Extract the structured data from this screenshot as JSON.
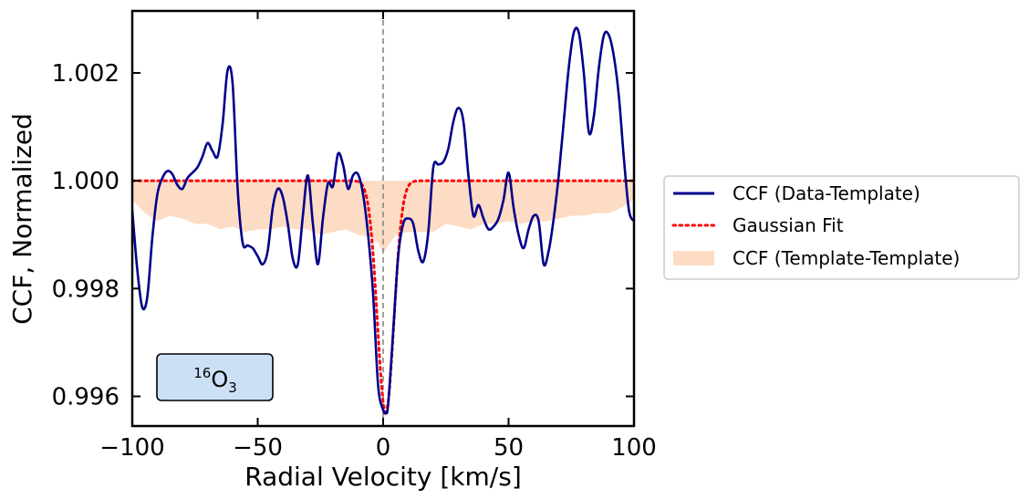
{
  "chart_data": {
    "type": "line",
    "title": "",
    "xlabel": "Radial Velocity [km/s]",
    "ylabel": "CCF, Normalized",
    "xlim": [
      -100,
      100
    ],
    "ylim": [
      0.99545,
      1.00315
    ],
    "x_ticks": [
      -100,
      -50,
      0,
      50,
      100
    ],
    "x_tick_labels": [
      "−100",
      "−50",
      "0",
      "50",
      "100"
    ],
    "y_ticks": [
      0.996,
      0.998,
      1.0,
      1.002
    ],
    "y_tick_labels": [
      "0.996",
      "0.998",
      "1.000",
      "1.002"
    ],
    "grid": false,
    "legend_position": "right-outside",
    "vertical_line_x": 0,
    "annotation": {
      "sup": "16",
      "base": "O",
      "sub": "3"
    },
    "colors": {
      "data": "#00008b",
      "fit": "#ff0000",
      "template": "#fcdcc4",
      "annotation_fill": "#cce0f5",
      "vline": "#888888"
    },
    "series": [
      {
        "name": "CCF (Data-Template)",
        "style": "solid",
        "x": [
          -100,
          -98,
          -96,
          -94,
          -92,
          -90,
          -88,
          -86,
          -84,
          -82,
          -80,
          -78,
          -76,
          -74,
          -72,
          -70,
          -68,
          -66,
          -64,
          -62,
          -60,
          -58,
          -56,
          -54,
          -52,
          -50,
          -48,
          -46,
          -44,
          -42,
          -40,
          -38,
          -36,
          -34,
          -32,
          -30,
          -28,
          -26,
          -24,
          -22,
          -20,
          -18,
          -16,
          -14,
          -12,
          -10,
          -8,
          -6,
          -4,
          -2,
          0,
          1,
          2,
          4,
          6,
          8,
          10,
          12,
          14,
          16,
          18,
          20,
          22,
          24,
          26,
          28,
          30,
          32,
          34,
          36,
          38,
          40,
          42,
          44,
          46,
          48,
          50,
          52,
          54,
          56,
          58,
          60,
          62,
          64,
          66,
          68,
          70,
          72,
          74,
          76,
          78,
          80,
          82,
          84,
          86,
          88,
          90,
          92,
          94,
          96,
          98,
          100
        ],
        "y": [
          0.99945,
          0.99835,
          0.99765,
          0.99785,
          0.99895,
          0.99975,
          1.00005,
          1.00018,
          1.00012,
          0.99992,
          0.99985,
          1.00005,
          1.00015,
          1.00025,
          1.00045,
          1.0007,
          1.00055,
          1.00045,
          1.00105,
          1.00205,
          1.0018,
          0.99985,
          0.99885,
          0.9988,
          0.99875,
          0.9986,
          0.99845,
          0.9987,
          0.9995,
          0.99985,
          0.9997,
          0.9992,
          0.99855,
          0.99845,
          0.99935,
          1.0001,
          0.9992,
          0.99845,
          0.9993,
          0.99995,
          0.9999,
          1.0005,
          1.0003,
          0.99985,
          1.0001,
          1.00012,
          0.99975,
          0.999,
          0.9979,
          0.9962,
          0.99575,
          0.9957,
          0.99585,
          0.9972,
          0.9986,
          0.9992,
          0.9993,
          0.9992,
          0.9987,
          0.9985,
          0.99905,
          1.00025,
          1.0003,
          1.00035,
          1.0006,
          1.0011,
          1.00135,
          1.0011,
          1.0001,
          0.99935,
          0.99955,
          0.9993,
          0.9991,
          0.99915,
          0.9993,
          0.99965,
          1.00015,
          0.9995,
          0.999,
          0.99875,
          0.9991,
          0.99935,
          0.99925,
          0.99845,
          0.9987,
          0.9993,
          1.0001,
          1.0011,
          1.0021,
          1.00275,
          1.00275,
          1.002,
          1.0009,
          1.0012,
          1.0021,
          1.0027,
          1.0027,
          1.0023,
          1.00155,
          1.0004,
          0.99945,
          0.99925
        ]
      },
      {
        "name": "Gaussian Fit",
        "style": "dotted",
        "model": "gaussian",
        "baseline": 1.0,
        "amplitude": -0.0043,
        "center": 1.0,
        "sigma": 3.3
      },
      {
        "name": "CCF (Template-Template)",
        "style": "filled-area",
        "baseline": 1.0,
        "x": [
          -100,
          -95,
          -90,
          -85,
          -80,
          -75,
          -70,
          -65,
          -60,
          -55,
          -50,
          -45,
          -40,
          -35,
          -30,
          -25,
          -20,
          -15,
          -10,
          -5,
          -2,
          0,
          2,
          5,
          10,
          15,
          20,
          25,
          30,
          35,
          40,
          45,
          50,
          55,
          60,
          65,
          70,
          75,
          80,
          85,
          90,
          95,
          100
        ],
        "y": [
          0.99965,
          0.9994,
          0.99925,
          0.99935,
          0.9993,
          0.9992,
          0.9992,
          0.9991,
          0.99915,
          0.99905,
          0.9991,
          0.9991,
          0.99915,
          0.9991,
          0.9991,
          0.999,
          0.99905,
          0.9991,
          0.999,
          0.99895,
          0.99885,
          0.99865,
          0.9988,
          0.999,
          0.99905,
          0.99905,
          0.99905,
          0.9992,
          0.99915,
          0.9991,
          0.9992,
          0.9992,
          0.99925,
          0.9992,
          0.99925,
          0.99925,
          0.9993,
          0.99935,
          0.99935,
          0.9994,
          0.9994,
          0.9995,
          0.99965
        ]
      }
    ]
  }
}
